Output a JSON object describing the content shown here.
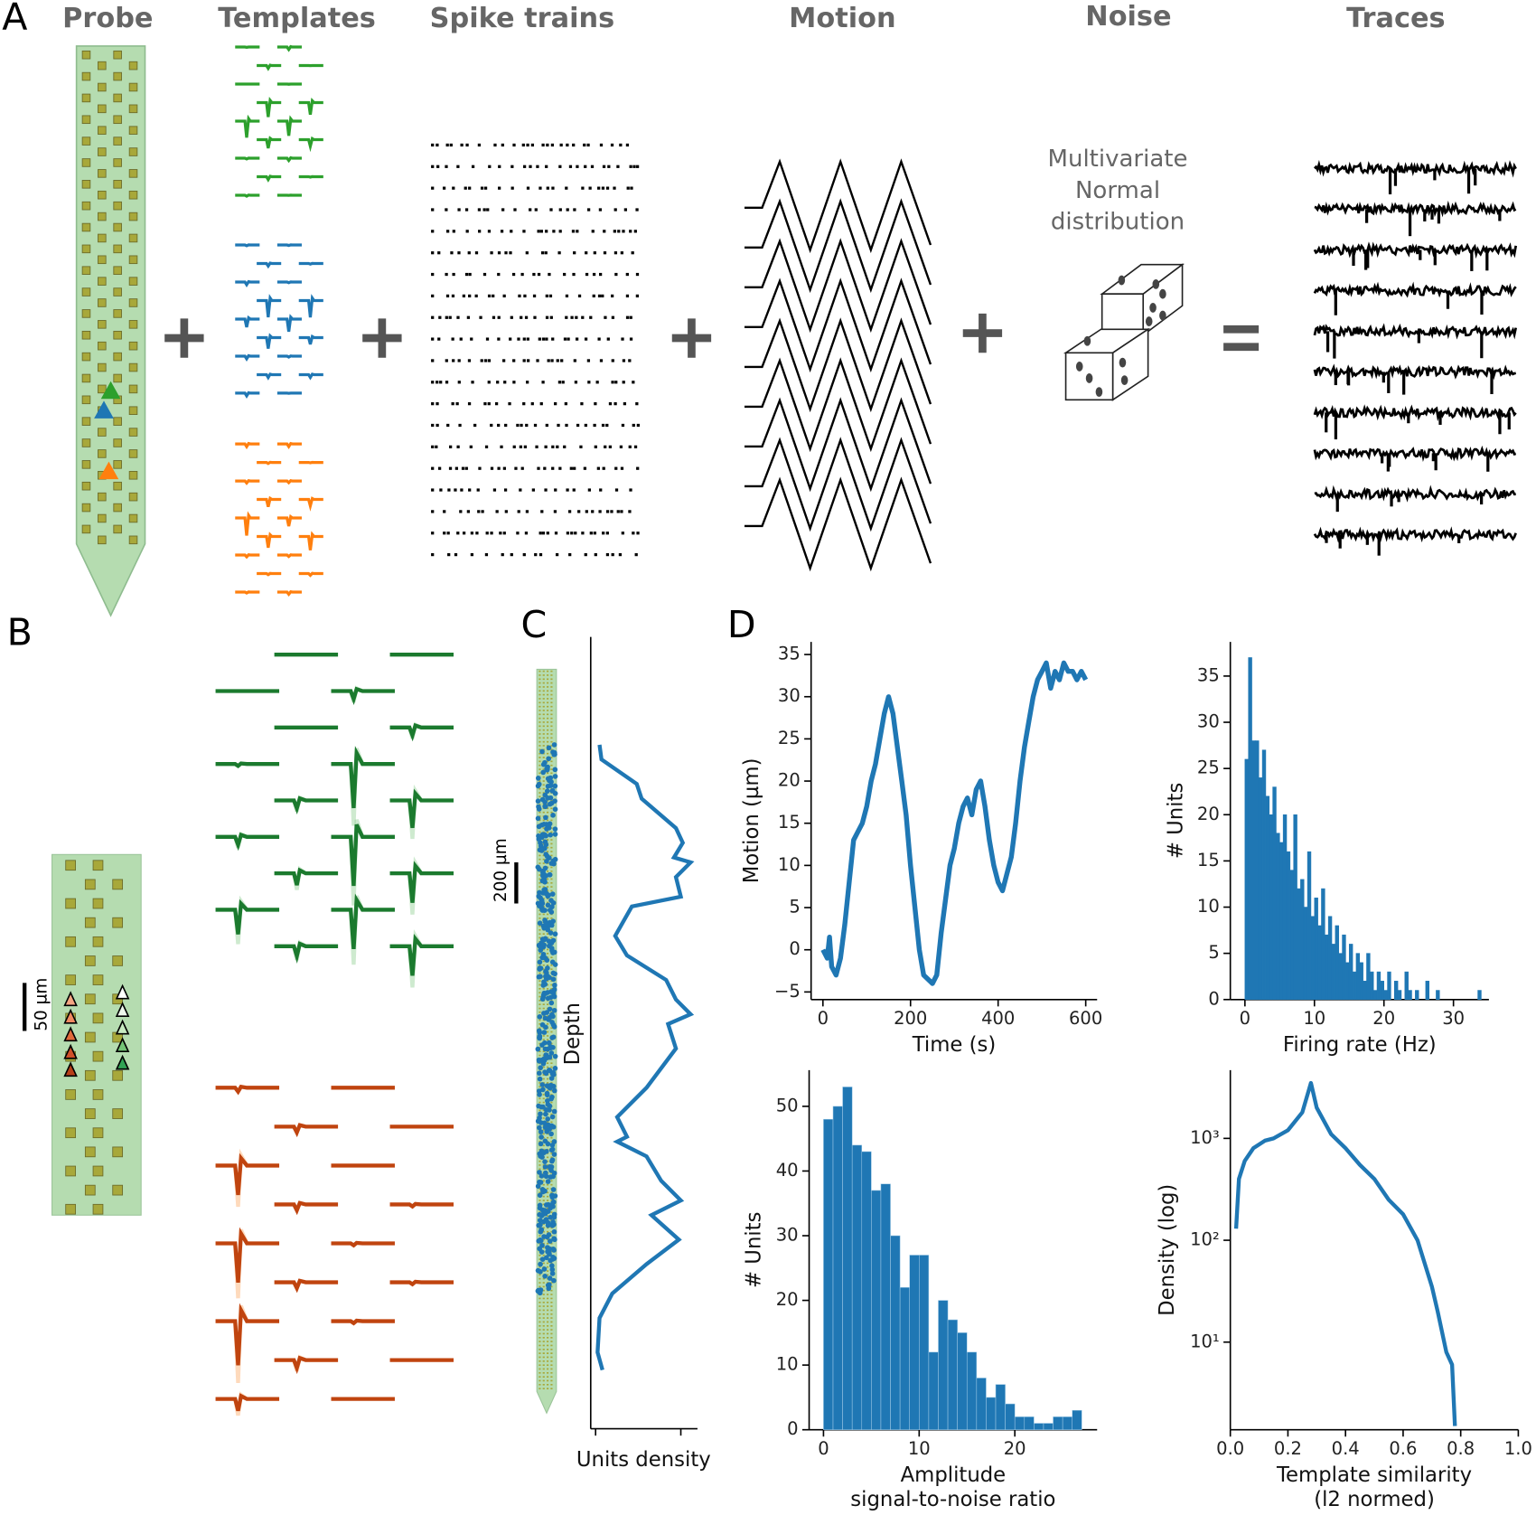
{
  "panel_labels": [
    "A",
    "B",
    "C",
    "D"
  ],
  "pipeline": {
    "titles": [
      "Probe",
      "Templates",
      "Spike trains",
      "Motion",
      "Noise",
      "Traces"
    ],
    "noise_text": [
      "Multivariate",
      "Normal",
      "distribution"
    ]
  },
  "panel_b": {
    "scale_bar": "50 µm"
  },
  "chart_data": [
    {
      "type": "density-profile",
      "scale_bar": "200 µm",
      "ylabel": "Depth",
      "xlabel": "Units density",
      "color": "#1f77b4",
      "depth": [
        385,
        460,
        585,
        660,
        810,
        885,
        960,
        985,
        1060,
        1160,
        1210,
        1360,
        1460,
        1585,
        1685,
        1760,
        1810,
        1935,
        2135,
        2285,
        2385,
        2410,
        2485,
        2610,
        2710,
        2785,
        2910,
        3035,
        3185,
        3310,
        3485,
        3575
      ],
      "values": [
        0.04,
        0.06,
        0.42,
        0.47,
        0.82,
        0.89,
        0.8,
        0.97,
        0.82,
        0.87,
        0.37,
        0.2,
        0.32,
        0.72,
        0.82,
        0.97,
        0.74,
        0.82,
        0.52,
        0.22,
        0.32,
        0.22,
        0.52,
        0.67,
        0.87,
        0.57,
        0.85,
        0.52,
        0.17,
        0.04,
        0.02,
        0.07
      ],
      "xlim": [
        -0.05,
        1.04
      ],
      "xticks": [
        0,
        0.87
      ],
      "tick_labels": false,
      "ylim": [
        0,
        3785
      ]
    },
    {
      "type": "line",
      "xlabel": "Time (s)",
      "ylabel": "Motion (µm)",
      "color": "#1f77b4",
      "x": [
        0,
        10,
        15,
        20,
        30,
        40,
        50,
        60,
        70,
        80,
        90,
        100,
        110,
        120,
        130,
        140,
        150,
        160,
        170,
        180,
        190,
        200,
        210,
        220,
        230,
        250,
        260,
        270,
        280,
        290,
        300,
        310,
        320,
        330,
        340,
        350,
        360,
        370,
        380,
        390,
        400,
        410,
        420,
        430,
        440,
        450,
        460,
        470,
        480,
        490,
        500,
        510,
        520,
        530,
        540,
        550,
        560,
        570,
        580,
        590,
        600
      ],
      "values": [
        0,
        -1,
        1.5,
        -2,
        -3,
        -1,
        3,
        8,
        13,
        14,
        15,
        17,
        20,
        22,
        25,
        28,
        30,
        28,
        24,
        20,
        16,
        10,
        5,
        0,
        -3,
        -4,
        -3,
        2,
        6,
        10,
        12,
        15,
        17,
        18,
        16,
        19,
        20,
        17,
        13,
        10,
        8,
        7,
        9,
        11,
        15,
        20,
        24,
        27,
        30,
        32,
        33,
        34,
        31,
        33,
        32,
        34,
        33,
        33,
        32,
        33,
        32
      ],
      "xlim": [
        -27,
        626
      ],
      "xticks": [
        0,
        200,
        400,
        600
      ],
      "ylim": [
        -5.9,
        36.5
      ],
      "yticks": [
        {
          "value": -5,
          "label": "−5"
        },
        0,
        5,
        10,
        15,
        20,
        25,
        30,
        35
      ]
    },
    {
      "type": "histogram",
      "xlabel": "Firing rate (Hz)",
      "ylabel": "# Units",
      "color": "#1f77b4",
      "bins": [
        0,
        0.5,
        1,
        1.5,
        2,
        2.5,
        3,
        3.5,
        4,
        4.5,
        5,
        5.5,
        6,
        6.5,
        7,
        7.5,
        8,
        8.5,
        9,
        9.5,
        10,
        10.5,
        11,
        11.5,
        12,
        12.5,
        13,
        13.5,
        14,
        14.5,
        15,
        15.5,
        16,
        16.5,
        17,
        17.5,
        18,
        18.5,
        19,
        19.5,
        20,
        20.5,
        21,
        21.5,
        22,
        22.5,
        23,
        23.5,
        24,
        24.5,
        25,
        25.5,
        26,
        26.5,
        27,
        27.5,
        28,
        28.5,
        29,
        29.5,
        30,
        30.5,
        31,
        31.5,
        32,
        32.5,
        33,
        33.5,
        34,
        34.5,
        35
      ],
      "values": [
        26,
        37,
        28,
        28,
        24,
        27,
        22,
        20,
        23,
        18,
        17,
        20,
        16,
        14,
        20,
        12,
        13,
        10,
        16,
        9,
        11,
        8,
        12,
        7,
        9,
        6,
        8,
        5,
        7,
        4,
        6,
        3,
        5,
        4,
        2,
        5,
        3,
        1,
        3,
        2,
        1,
        3,
        0,
        2,
        1,
        0,
        3,
        1,
        0,
        1,
        0,
        0,
        2,
        0,
        0,
        1,
        0,
        0,
        0,
        0,
        0,
        0,
        0,
        0,
        0,
        0,
        0,
        1,
        0,
        0
      ],
      "xlim": [
        -2.1,
        35.1
      ],
      "xticks": [
        0,
        10,
        20,
        30
      ],
      "ylim": [
        0,
        38.7
      ],
      "yticks": [
        0,
        5,
        10,
        15,
        20,
        25,
        30,
        35
      ]
    },
    {
      "type": "histogram",
      "xlabel": [
        "Amplitude",
        "signal-to-noise ratio"
      ],
      "ylabel": "# Units",
      "color": "#1f77b4",
      "bins": [
        0,
        1,
        2,
        3,
        4,
        5,
        6,
        7,
        8,
        9,
        10,
        11,
        12,
        13,
        14,
        15,
        16,
        17,
        18,
        19,
        20,
        21,
        22,
        23,
        24,
        25,
        26,
        27
      ],
      "values": [
        48,
        50,
        53,
        44,
        43,
        37,
        38,
        30,
        22,
        27,
        27,
        12,
        20,
        17,
        15,
        12,
        8,
        5,
        7,
        4,
        2,
        2,
        1,
        1,
        2,
        2,
        3
      ],
      "xlim": [
        -1.5,
        28.6
      ],
      "xticks": [
        0,
        10,
        20
      ],
      "ylim": [
        0,
        55.6
      ],
      "yticks": [
        0,
        10,
        20,
        30,
        40,
        50
      ]
    },
    {
      "type": "line",
      "xlabel": [
        "Template similarity",
        "(l2 normed)"
      ],
      "ylabel": "Density (log)",
      "color": "#1f77b4",
      "log_y": true,
      "x": [
        0.02,
        0.03,
        0.05,
        0.08,
        0.12,
        0.15,
        0.2,
        0.25,
        0.28,
        0.3,
        0.35,
        0.4,
        0.45,
        0.5,
        0.55,
        0.6,
        0.65,
        0.7,
        0.72,
        0.75,
        0.77,
        0.78
      ],
      "values": [
        130,
        400,
        600,
        800,
        950,
        1000,
        1200,
        1800,
        3500,
        2000,
        1100,
        800,
        550,
        400,
        250,
        180,
        100,
        35,
        20,
        8,
        6,
        1.5
      ],
      "xlim": [
        0,
        1
      ],
      "xticks": [
        {
          "value": 0,
          "label": "0.0"
        },
        0.2,
        0.4,
        0.6,
        0.8,
        {
          "value": 1,
          "label": "1.0"
        }
      ],
      "ylim": [
        1.38,
        4680
      ],
      "yticks": [
        {
          "value": 10,
          "label": "10¹"
        },
        {
          "value": 100,
          "label": "10²"
        },
        {
          "value": 1000,
          "label": "10³"
        }
      ]
    }
  ]
}
